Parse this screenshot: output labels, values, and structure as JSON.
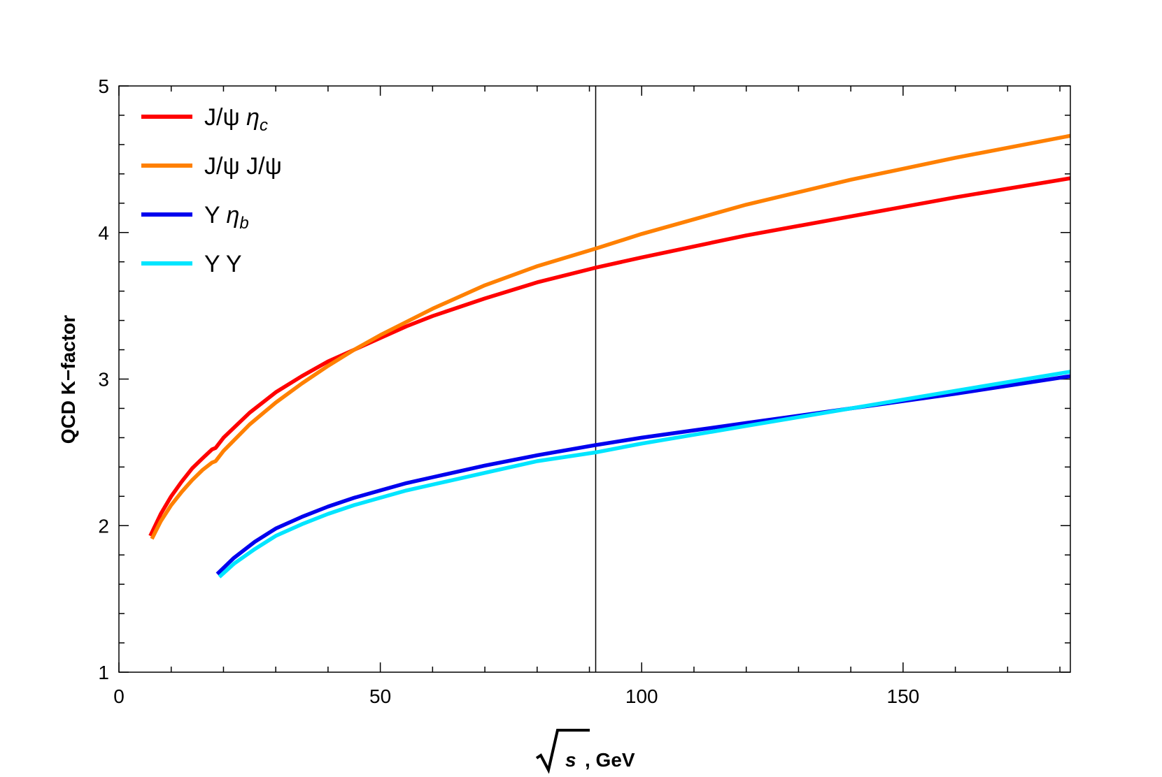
{
  "chart_data": {
    "type": "line",
    "title": "",
    "xlabel": "√s , GeV",
    "ylabel": "QCD K−factor",
    "xlim": [
      0,
      182
    ],
    "ylim": [
      1,
      5
    ],
    "xticks": [
      0,
      50,
      100,
      150
    ],
    "yticks": [
      1,
      2,
      3,
      4,
      5
    ],
    "x_minor_step": 10,
    "y_minor_step": 0.2,
    "vertical_line_x": 91.2,
    "grid": false,
    "legend_position": "top-left",
    "series": [
      {
        "name": "J/ψ ηc",
        "color": "#ff0000",
        "points": [
          [
            6.0,
            1.93
          ],
          [
            8,
            2.08
          ],
          [
            10,
            2.2
          ],
          [
            12,
            2.3
          ],
          [
            14,
            2.39
          ],
          [
            16,
            2.46
          ],
          [
            17.8,
            2.52
          ],
          [
            18.5,
            2.53
          ],
          [
            20,
            2.6
          ],
          [
            25,
            2.77
          ],
          [
            30,
            2.91
          ],
          [
            35,
            3.02
          ],
          [
            40,
            3.12
          ],
          [
            45,
            3.2
          ],
          [
            50,
            3.28
          ],
          [
            55,
            3.36
          ],
          [
            60,
            3.43
          ],
          [
            70,
            3.55
          ],
          [
            80,
            3.66
          ],
          [
            91.2,
            3.76
          ],
          [
            100,
            3.83
          ],
          [
            120,
            3.98
          ],
          [
            140,
            4.11
          ],
          [
            160,
            4.24
          ],
          [
            182,
            4.37
          ]
        ]
      },
      {
        "name": "J/ψ J/ψ",
        "color": "#ff8000",
        "points": [
          [
            6.3,
            1.91
          ],
          [
            8,
            2.03
          ],
          [
            10,
            2.14
          ],
          [
            12,
            2.23
          ],
          [
            14,
            2.31
          ],
          [
            16,
            2.38
          ],
          [
            17.8,
            2.43
          ],
          [
            18.5,
            2.44
          ],
          [
            20,
            2.51
          ],
          [
            25,
            2.69
          ],
          [
            30,
            2.84
          ],
          [
            35,
            2.97
          ],
          [
            40,
            3.09
          ],
          [
            45,
            3.2
          ],
          [
            50,
            3.3
          ],
          [
            55,
            3.39
          ],
          [
            60,
            3.48
          ],
          [
            70,
            3.64
          ],
          [
            80,
            3.77
          ],
          [
            91.2,
            3.89
          ],
          [
            100,
            3.99
          ],
          [
            120,
            4.19
          ],
          [
            140,
            4.36
          ],
          [
            160,
            4.51
          ],
          [
            182,
            4.66
          ]
        ]
      },
      {
        "name": "Υ ηb",
        "color": "#0000ee",
        "points": [
          [
            18.8,
            1.67
          ],
          [
            22,
            1.78
          ],
          [
            26,
            1.89
          ],
          [
            30,
            1.98
          ],
          [
            35,
            2.06
          ],
          [
            40,
            2.13
          ],
          [
            45,
            2.19
          ],
          [
            50,
            2.24
          ],
          [
            55,
            2.29
          ],
          [
            60,
            2.33
          ],
          [
            70,
            2.41
          ],
          [
            80,
            2.48
          ],
          [
            91.2,
            2.55
          ],
          [
            100,
            2.6
          ],
          [
            110,
            2.65
          ],
          [
            120,
            2.7
          ],
          [
            140,
            2.8
          ],
          [
            160,
            2.9
          ],
          [
            182,
            3.02
          ]
        ]
      },
      {
        "name": "Υ Υ",
        "color": "#00e5ff",
        "points": [
          [
            19.2,
            1.65
          ],
          [
            22,
            1.74
          ],
          [
            26,
            1.84
          ],
          [
            30,
            1.93
          ],
          [
            35,
            2.01
          ],
          [
            40,
            2.08
          ],
          [
            45,
            2.14
          ],
          [
            50,
            2.19
          ],
          [
            55,
            2.24
          ],
          [
            60,
            2.28
          ],
          [
            70,
            2.36
          ],
          [
            80,
            2.44
          ],
          [
            91.2,
            2.5
          ],
          [
            100,
            2.56
          ],
          [
            110,
            2.62
          ],
          [
            120,
            2.68
          ],
          [
            140,
            2.8
          ],
          [
            160,
            2.92
          ],
          [
            182,
            3.05
          ]
        ]
      }
    ]
  },
  "legend": {
    "items": [
      {
        "main": "J/ψ ",
        "italic": "η",
        "sub": "c"
      },
      {
        "main": "J/ψ J/ψ",
        "italic": "",
        "sub": ""
      },
      {
        "main": "Y ",
        "italic": "η",
        "sub": "b"
      },
      {
        "main": "Y Y",
        "italic": "",
        "sub": ""
      }
    ]
  },
  "axes": {
    "x_title_symbol": "s",
    "x_title_unit": ", GeV",
    "y_title": "QCD K−factor"
  }
}
